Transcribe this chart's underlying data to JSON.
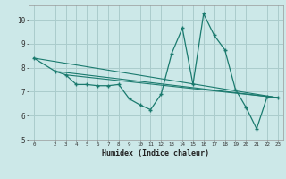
{
  "xlabel": "Humidex (Indice chaleur)",
  "bg_color": "#cce8e8",
  "grid_color": "#aacccc",
  "line_color": "#1a7a6e",
  "xlim": [
    -0.5,
    23.5
  ],
  "ylim": [
    5,
    10.6
  ],
  "xticks": [
    0,
    2,
    3,
    4,
    5,
    6,
    7,
    8,
    9,
    10,
    11,
    12,
    13,
    14,
    15,
    16,
    17,
    18,
    19,
    20,
    21,
    22,
    23
  ],
  "yticks": [
    5,
    6,
    7,
    8,
    9,
    10
  ],
  "main_x": [
    0,
    2,
    3,
    4,
    5,
    6,
    7,
    8,
    9,
    10,
    11,
    12,
    13,
    14,
    15,
    16,
    17,
    18,
    19,
    20,
    21,
    22,
    23
  ],
  "main_y": [
    8.4,
    7.85,
    7.7,
    7.3,
    7.3,
    7.25,
    7.25,
    7.3,
    6.7,
    6.45,
    6.25,
    6.9,
    8.6,
    9.65,
    7.3,
    10.25,
    9.35,
    8.75,
    7.1,
    6.35,
    5.45,
    6.8,
    6.75
  ],
  "trend1_x": [
    0,
    23
  ],
  "trend1_y": [
    8.4,
    6.75
  ],
  "trend2_x": [
    2,
    23
  ],
  "trend2_y": [
    7.85,
    6.75
  ],
  "trend3_x": [
    3,
    23
  ],
  "trend3_y": [
    7.7,
    6.75
  ]
}
